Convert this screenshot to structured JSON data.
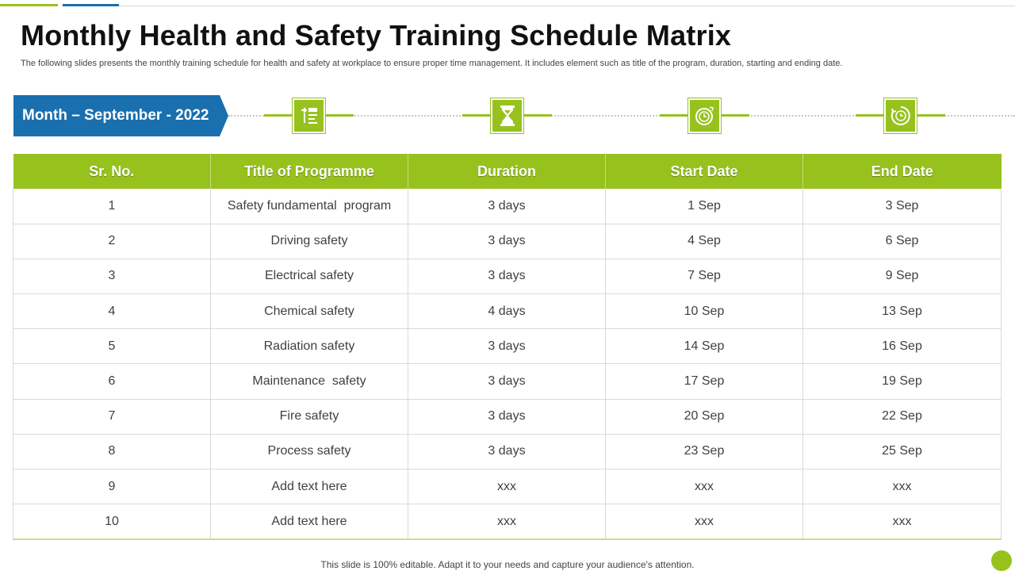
{
  "header": {
    "title": "Monthly Health and Safety Training Schedule Matrix",
    "subtitle": "The following slides presents the monthly training schedule for health and safety at workplace to ensure proper time management. It includes element such as title of the program, duration, starting and ending date."
  },
  "month_banner": {
    "label": "Month – September - 2022"
  },
  "icons": [
    "schedule-list-icon",
    "hourglass-icon",
    "clock-icon",
    "timer-icon"
  ],
  "colors": {
    "accent_green": "#97c21e",
    "accent_blue": "#1a6fae"
  },
  "table": {
    "columns": [
      "Sr. No.",
      "Title of Programme",
      "Duration",
      "Start Date",
      "End Date"
    ],
    "rows": [
      [
        "1",
        "Safety fundamental  program",
        "3 days",
        "1 Sep",
        "3 Sep"
      ],
      [
        "2",
        "Driving safety",
        "3 days",
        "4 Sep",
        "6 Sep"
      ],
      [
        "3",
        "Electrical safety",
        "3 days",
        "7 Sep",
        "9 Sep"
      ],
      [
        "4",
        "Chemical safety",
        "4 days",
        "10 Sep",
        "13 Sep"
      ],
      [
        "5",
        "Radiation safety",
        "3 days",
        "14 Sep",
        "16 Sep"
      ],
      [
        "6",
        "Maintenance  safety",
        "3 days",
        "17 Sep",
        "19 Sep"
      ],
      [
        "7",
        "Fire safety",
        "3 days",
        "20 Sep",
        "22 Sep"
      ],
      [
        "8",
        "Process safety",
        "3 days",
        "23 Sep",
        "25 Sep"
      ],
      [
        "9",
        "Add text here",
        "xxx",
        "xxx",
        "xxx"
      ],
      [
        "10",
        "Add text here",
        "xxx",
        "xxx",
        "xxx"
      ]
    ]
  },
  "footer": {
    "text": "This slide is 100% editable. Adapt it to your needs and capture your audience's attention."
  }
}
